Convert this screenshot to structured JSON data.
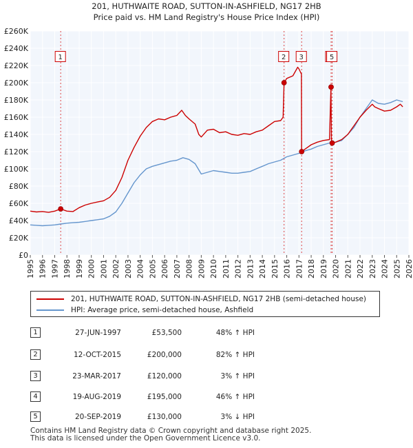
{
  "chart_data": {
    "type": "line",
    "title": "201, HUTHWAITE ROAD, SUTTON-IN-ASHFIELD, NG17 2HB",
    "subtitle": "Price paid vs. HM Land Registry's House Price Index (HPI)",
    "xlabel": "",
    "ylabel": "",
    "xlim": [
      1995,
      2026
    ],
    "ylim": [
      0,
      260000
    ],
    "y_ticks": [
      0,
      20000,
      40000,
      60000,
      80000,
      100000,
      120000,
      140000,
      160000,
      180000,
      200000,
      220000,
      240000,
      260000
    ],
    "y_tick_labels": [
      "£0",
      "£20K",
      "£40K",
      "£60K",
      "£80K",
      "£100K",
      "£120K",
      "£140K",
      "£160K",
      "£180K",
      "£200K",
      "£220K",
      "£240K",
      "£260K"
    ],
    "x_ticks": [
      1995,
      1996,
      1997,
      1998,
      1999,
      2000,
      2001,
      2002,
      2003,
      2004,
      2005,
      2006,
      2007,
      2008,
      2009,
      2010,
      2011,
      2012,
      2013,
      2014,
      2015,
      2016,
      2017,
      2018,
      2019,
      2020,
      2021,
      2022,
      2023,
      2024,
      2025,
      2026
    ],
    "x_tick_labels": [
      "1995",
      "1996",
      "1997",
      "1998",
      "1999",
      "2000",
      "2001",
      "2002",
      "2003",
      "2004",
      "2005",
      "2006",
      "2007",
      "2008",
      "2009",
      "2010",
      "2011",
      "2012",
      "2013",
      "2014",
      "2015",
      "2016",
      "2017",
      "2018",
      "2019",
      "2020",
      "2021",
      "2022",
      "2023",
      "2024",
      "2025",
      "2026"
    ],
    "grid": true,
    "series": [
      {
        "name": "201, HUTHWAITE ROAD, SUTTON-IN-ASHFIELD, NG17 2HB (semi-detached house)",
        "color": "#cc0000",
        "x": [
          1995.0,
          1995.5,
          1996.0,
          1996.5,
          1997.0,
          1997.49,
          1998.0,
          1998.5,
          1999.0,
          1999.5,
          2000.0,
          2000.5,
          2001.0,
          2001.5,
          2002.0,
          2002.5,
          2003.0,
          2003.5,
          2004.0,
          2004.5,
          2005.0,
          2005.5,
          2006.0,
          2006.5,
          2007.0,
          2007.4,
          2007.7,
          2008.0,
          2008.5,
          2008.8,
          2009.0,
          2009.5,
          2010.0,
          2010.5,
          2011.0,
          2011.5,
          2012.0,
          2012.5,
          2013.0,
          2013.5,
          2014.0,
          2014.5,
          2015.0,
          2015.5,
          2015.7,
          2015.78,
          2016.0,
          2016.5,
          2016.9,
          2017.0,
          2017.2,
          2017.22,
          2017.5,
          2018.0,
          2018.5,
          2019.0,
          2019.5,
          2019.62,
          2019.66,
          2019.72,
          2020.0,
          2020.5,
          2021.0,
          2021.5,
          2022.0,
          2022.5,
          2023.0,
          2023.2,
          2023.5,
          2024.0,
          2024.5,
          2025.0,
          2025.3,
          2025.5
        ],
        "values": [
          51000,
          50000,
          50500,
          49500,
          51000,
          53500,
          51000,
          50500,
          55000,
          58000,
          60000,
          61500,
          63000,
          67000,
          75000,
          90000,
          110000,
          125000,
          138000,
          148000,
          155000,
          158000,
          157000,
          160000,
          162000,
          168000,
          162000,
          158000,
          152000,
          140000,
          137000,
          145000,
          146000,
          142000,
          143000,
          140000,
          139000,
          141000,
          140000,
          143000,
          145000,
          150000,
          155000,
          156000,
          160000,
          200000,
          205000,
          208000,
          218000,
          216000,
          210000,
          120000,
          123000,
          128000,
          131000,
          133000,
          134000,
          195000,
          134000,
          130000,
          131000,
          134000,
          140000,
          150000,
          160000,
          168000,
          175000,
          172000,
          170000,
          167000,
          168000,
          172000,
          175000,
          172000
        ]
      },
      {
        "name": "HPI: Average price, semi-detached house, Ashfield",
        "color": "#6495cd",
        "x": [
          1995.0,
          1995.5,
          1996.0,
          1996.5,
          1997.0,
          1997.5,
          1998.0,
          1998.5,
          1999.0,
          1999.5,
          2000.0,
          2000.5,
          2001.0,
          2001.5,
          2002.0,
          2002.5,
          2003.0,
          2003.5,
          2004.0,
          2004.5,
          2005.0,
          2005.5,
          2006.0,
          2006.5,
          2007.0,
          2007.5,
          2008.0,
          2008.5,
          2009.0,
          2009.5,
          2010.0,
          2010.5,
          2011.0,
          2011.5,
          2012.0,
          2012.5,
          2013.0,
          2013.5,
          2014.0,
          2014.5,
          2015.0,
          2015.5,
          2016.0,
          2016.5,
          2017.0,
          2017.5,
          2018.0,
          2018.5,
          2019.0,
          2019.5,
          2020.0,
          2020.5,
          2021.0,
          2021.5,
          2022.0,
          2022.5,
          2023.0,
          2023.5,
          2024.0,
          2024.5,
          2025.0,
          2025.5
        ],
        "values": [
          35000,
          34500,
          34000,
          34500,
          35000,
          36000,
          37000,
          37500,
          38000,
          39000,
          40000,
          41000,
          42000,
          45000,
          50000,
          60000,
          72000,
          84000,
          93000,
          100000,
          103000,
          105000,
          107000,
          109000,
          110000,
          113000,
          111000,
          106000,
          94000,
          96000,
          98000,
          97000,
          96000,
          95000,
          95000,
          96000,
          97000,
          100000,
          103000,
          106000,
          108000,
          110000,
          114000,
          116000,
          118000,
          121000,
          123000,
          126000,
          128000,
          130000,
          131000,
          133000,
          140000,
          148000,
          160000,
          170000,
          180000,
          176000,
          175000,
          177000,
          180000,
          178000
        ]
      }
    ],
    "sales": [
      {
        "id": "1",
        "x": 1997.49,
        "value": 53500,
        "label_y": 230000
      },
      {
        "id": "2",
        "x": 2015.78,
        "value": 200000,
        "label_y": 230000
      },
      {
        "id": "3",
        "x": 2017.22,
        "value": 120000,
        "label_y": 230000
      },
      {
        "id": "4",
        "x": 2019.63,
        "value": 195000,
        "label_y": 230000
      },
      {
        "id": "5",
        "x": 2019.72,
        "value": 130000,
        "label_y": 230000
      }
    ]
  },
  "legend": {
    "property_label": "201, HUTHWAITE ROAD, SUTTON-IN-ASHFIELD, NG17 2HB (semi-detached house)",
    "hpi_label": "HPI: Average price, semi-detached house, Ashfield",
    "property_color": "#cc0000",
    "hpi_color": "#6495cd"
  },
  "transactions": [
    {
      "id": "1",
      "date": "27-JUN-1997",
      "price": "£53,500",
      "hpi": "48% ↑ HPI"
    },
    {
      "id": "2",
      "date": "12-OCT-2015",
      "price": "£200,000",
      "hpi": "82% ↑ HPI"
    },
    {
      "id": "3",
      "date": "23-MAR-2017",
      "price": "£120,000",
      "hpi": "3% ↑ HPI"
    },
    {
      "id": "4",
      "date": "19-AUG-2019",
      "price": "£195,000",
      "hpi": "46% ↑ HPI"
    },
    {
      "id": "5",
      "date": "20-SEP-2019",
      "price": "£130,000",
      "hpi": "3% ↓ HPI"
    }
  ],
  "footer": {
    "line1": "Contains HM Land Registry data © Crown copyright and database right 2025.",
    "line2": "This data is licensed under the Open Government Licence v3.0."
  }
}
